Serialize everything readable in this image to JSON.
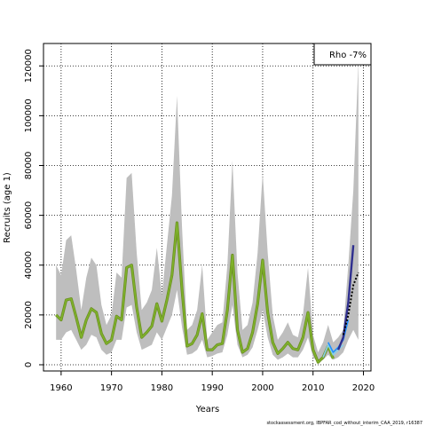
{
  "chart_data": {
    "type": "line",
    "xlabel": "Years",
    "ylabel": "Recruits (age 1)",
    "xlim": [
      1956.5,
      2021.5
    ],
    "ylim": [
      -2500,
      129000
    ],
    "x_ticks": [
      1960,
      1970,
      1980,
      1990,
      2000,
      2010,
      2020
    ],
    "y_ticks": [
      0,
      20000,
      40000,
      60000,
      80000,
      100000,
      120000
    ],
    "grid": true,
    "legend_box": {
      "text": "Rho -7%",
      "placement": "top-right"
    },
    "source_note": "stockassessment.org, IBPFAR_cod_without_interim_CAA_2019, r16387",
    "colors": {
      "band": "#bebebe",
      "base_line": "#7fb32a",
      "base_line_outline": "#6b8e23",
      "peel_1": "#1e90ff",
      "peel_2": "#87ceeb",
      "peel_3": "#2f2f8f",
      "dotted": "#000000"
    },
    "confidence_band": {
      "x": [
        1959,
        1960,
        1961,
        1962,
        1963,
        1964,
        1965,
        1966,
        1967,
        1968,
        1969,
        1970,
        1971,
        1972,
        1973,
        1974,
        1975,
        1976,
        1977,
        1978,
        1979,
        1980,
        1981,
        1982,
        1983,
        1984,
        1985,
        1986,
        1987,
        1988,
        1989,
        1990,
        1991,
        1992,
        1993,
        1994,
        1995,
        1996,
        1997,
        1998,
        1999,
        2000,
        2001,
        2002,
        2003,
        2004,
        2005,
        2006,
        2007,
        2008,
        2009,
        2010,
        2011,
        2012,
        2013,
        2014,
        2015,
        2016,
        2017,
        2018,
        2019
      ],
      "upper": [
        40000,
        36000,
        50000,
        52000,
        38000,
        22000,
        35000,
        43000,
        40000,
        24000,
        16000,
        20000,
        37000,
        35000,
        75000,
        77000,
        45000,
        22000,
        25000,
        30000,
        47000,
        28000,
        48000,
        68000,
        108000,
        55000,
        14000,
        16000,
        22000,
        40000,
        10000,
        13000,
        16000,
        17000,
        40000,
        82000,
        37000,
        14000,
        16000,
        25000,
        45000,
        77000,
        45000,
        20000,
        10000,
        13000,
        17000,
        12000,
        11000,
        20000,
        39000,
        12000,
        5000,
        9000,
        16000,
        9000,
        11000,
        14000,
        40000,
        70000,
        122000
      ],
      "lower": [
        10000,
        10000,
        13000,
        14000,
        10000,
        6000,
        8000,
        12000,
        11000,
        6000,
        4000,
        5000,
        10000,
        10000,
        23000,
        24000,
        13000,
        6000,
        7000,
        8000,
        13000,
        10000,
        15000,
        20000,
        30000,
        15000,
        4000,
        4500,
        6000,
        10000,
        3000,
        3500,
        4500,
        5000,
        12000,
        24000,
        8000,
        3000,
        4000,
        7000,
        14000,
        22000,
        11000,
        4000,
        2000,
        3000,
        4500,
        3000,
        3000,
        6000,
        11000,
        3000,
        1000,
        2000,
        4000,
        2000,
        3000,
        5000,
        10000,
        14000,
        10000
      ]
    },
    "series": [
      {
        "x": [
          1959,
          1960,
          1961,
          1962,
          1963,
          1964,
          1965,
          1966,
          1967,
          1968,
          1969,
          1970,
          1971,
          1972,
          1973,
          1974,
          1975,
          1976,
          1977,
          1978,
          1979,
          1980,
          1981,
          1982,
          1983,
          1984,
          1985,
          1986,
          1987,
          1988,
          1989,
          1990,
          1991,
          1992,
          1993,
          1994,
          1995,
          1996,
          1997,
          1998,
          1999,
          2000,
          2001,
          2002,
          2003,
          2004,
          2005,
          2006,
          2007,
          2008,
          2009,
          2010,
          2011,
          2012,
          2013,
          2014
        ],
        "values": [
          20000,
          18000,
          26000,
          26500,
          19000,
          11000,
          18000,
          22500,
          21000,
          12500,
          8500,
          10000,
          19500,
          18000,
          39000,
          40000,
          23000,
          11000,
          13000,
          15500,
          24500,
          17500,
          26000,
          36000,
          57000,
          30000,
          7500,
          8500,
          12000,
          20500,
          6000,
          6000,
          8000,
          8500,
          22000,
          44000,
          14000,
          5000,
          6500,
          13000,
          24500,
          42000,
          21000,
          9000,
          4500,
          6500,
          9000,
          6500,
          6000,
          11000,
          21000,
          6000,
          1000,
          3000,
          7500,
          2500
        ]
      },
      {
        "x": [
          2012,
          2013,
          2014,
          2015,
          2016
        ],
        "values": [
          3000,
          8000,
          4000,
          6000,
          8000
        ]
      },
      {
        "x": [
          2013,
          2014,
          2015,
          2016,
          2017
        ],
        "values": [
          9000,
          5000,
          7000,
          10000,
          18000
        ]
      },
      {
        "x": [
          2015,
          2016,
          2017,
          2018
        ],
        "values": [
          6000,
          11000,
          25000,
          48000
        ]
      },
      {
        "x": [
          2016,
          2017,
          2018,
          2019
        ],
        "values": [
          12000,
          20000,
          32000,
          37000
        ]
      }
    ]
  }
}
